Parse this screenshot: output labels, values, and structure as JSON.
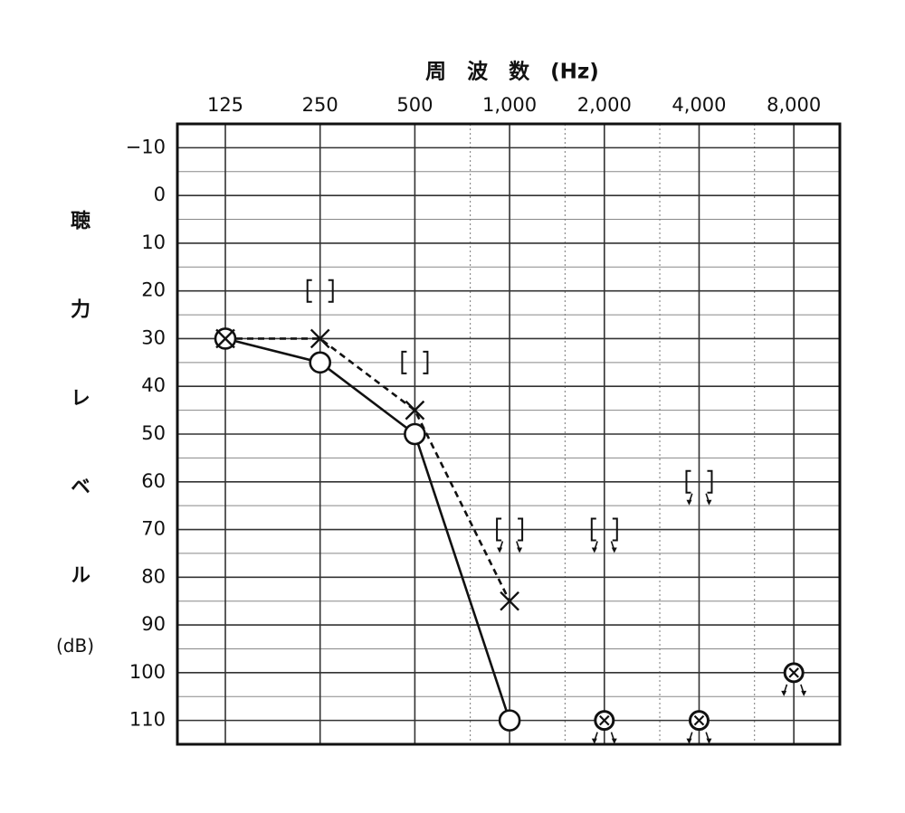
{
  "chart_data": {
    "type": "audiogram",
    "xlabel": "周　波　数　(Hz)",
    "ylabel": "聴力レベル",
    "ylabel_unit": "(dB)",
    "x": [
      125,
      250,
      500,
      1000,
      2000,
      4000,
      8000
    ],
    "xlog": true,
    "xlim": [
      88,
      11200
    ],
    "xticks": [
      125,
      250,
      500,
      {
        "value": 1000,
        "label": "1,000"
      },
      {
        "value": 2000,
        "label": "2,000"
      },
      {
        "value": 4000,
        "label": "4,000"
      },
      {
        "value": 8000,
        "label": "8,000"
      }
    ],
    "xminorticks": [
      750,
      1500,
      3000,
      6000
    ],
    "ylim": [
      -15,
      115
    ],
    "yinverted": true,
    "yticks": [
      {
        "value": -10,
        "label": "−10"
      },
      0,
      10,
      20,
      30,
      40,
      50,
      60,
      70,
      80,
      90,
      100,
      110
    ],
    "yminorticks": [
      -5,
      5,
      15,
      25,
      35,
      45,
      55,
      65,
      75,
      85,
      95,
      105
    ],
    "grid": true,
    "series": [
      {
        "marker": "circle",
        "line": "solid",
        "color": "#111111",
        "values": [
          30,
          35,
          50,
          110,
          null,
          null,
          null
        ],
        "no_response": [
          false,
          false,
          false,
          false,
          false,
          false,
          false
        ]
      },
      {
        "marker": "cross",
        "line": "dashed",
        "color": "#111111",
        "values": [
          30,
          30,
          45,
          85,
          null,
          null,
          null
        ],
        "no_response": [
          false,
          false,
          false,
          false,
          false,
          false,
          false
        ]
      },
      {
        "marker": "circle-cross",
        "line": "none",
        "color": "#111111",
        "values": [
          null,
          null,
          null,
          null,
          110,
          110,
          100
        ],
        "no_response": [
          false,
          false,
          false,
          false,
          true,
          true,
          true
        ]
      },
      {
        "marker": "bracket",
        "line": "none",
        "color": "#111111",
        "values": [
          null,
          20,
          35,
          70,
          70,
          60,
          null
        ],
        "no_response": [
          false,
          false,
          false,
          true,
          true,
          true,
          false
        ]
      }
    ]
  }
}
